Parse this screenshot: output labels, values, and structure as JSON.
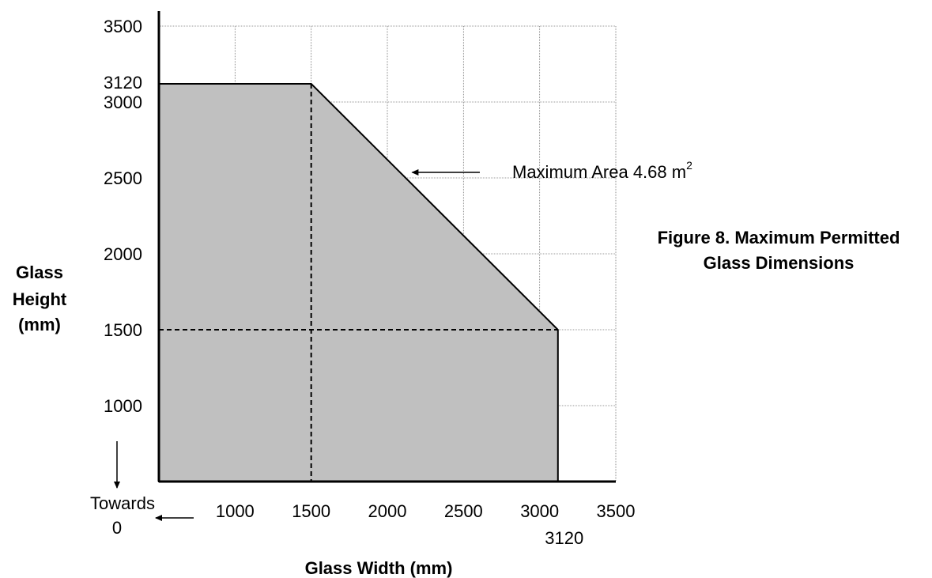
{
  "chart_data": {
    "type": "area",
    "title": "Figure 8. Maximum Permitted Glass Dimensions",
    "title_lines": [
      "Figure 8. Maximum Permitted",
      "Glass Dimensions"
    ],
    "xlabel": "Glass Width (mm)",
    "ylabel": "Glass Height (mm)",
    "ylabel_lines": [
      "Glass",
      "Height",
      "(mm)"
    ],
    "xlim": [
      500,
      3500
    ],
    "ylim": [
      500,
      3500
    ],
    "grid": true,
    "x_ticks": [
      {
        "value": 1000,
        "label": "1000"
      },
      {
        "value": 1500,
        "label": "1500"
      },
      {
        "value": 2000,
        "label": "2000"
      },
      {
        "value": 2500,
        "label": "2500"
      },
      {
        "value": 3000,
        "label": "3000"
      },
      {
        "value": 3500,
        "label": "3500"
      }
    ],
    "x_extra_tick": {
      "value": 3120,
      "label": "3120"
    },
    "y_ticks": [
      {
        "value": 1000,
        "label": "1000"
      },
      {
        "value": 1500,
        "label": "1500"
      },
      {
        "value": 2000,
        "label": "2000"
      },
      {
        "value": 2500,
        "label": "2500"
      },
      {
        "value": 3000,
        "label": "3000"
      },
      {
        "value": 3500,
        "label": "3500"
      }
    ],
    "y_extra_tick": {
      "value": 3120,
      "label": "3120"
    },
    "region": {
      "fill": "#c0c0c0",
      "points": [
        {
          "x": 500,
          "y": 500
        },
        {
          "x": 500,
          "y": 3120
        },
        {
          "x": 1500,
          "y": 3120
        },
        {
          "x": 3120,
          "y": 1500
        },
        {
          "x": 3120,
          "y": 500
        }
      ]
    },
    "dashed_guides": [
      {
        "x1": 1500,
        "y1": 3120,
        "x2": 1500,
        "y2": 500
      },
      {
        "x1": 500,
        "y1": 1500,
        "x2": 3120,
        "y2": 1500
      }
    ],
    "annotation": {
      "text": "Maximum Area 4.68 m",
      "superscript": "2",
      "points_to": {
        "x": 2080,
        "y": 2550
      }
    },
    "towards_zero": {
      "line1": "Towards",
      "line2": "0"
    }
  }
}
